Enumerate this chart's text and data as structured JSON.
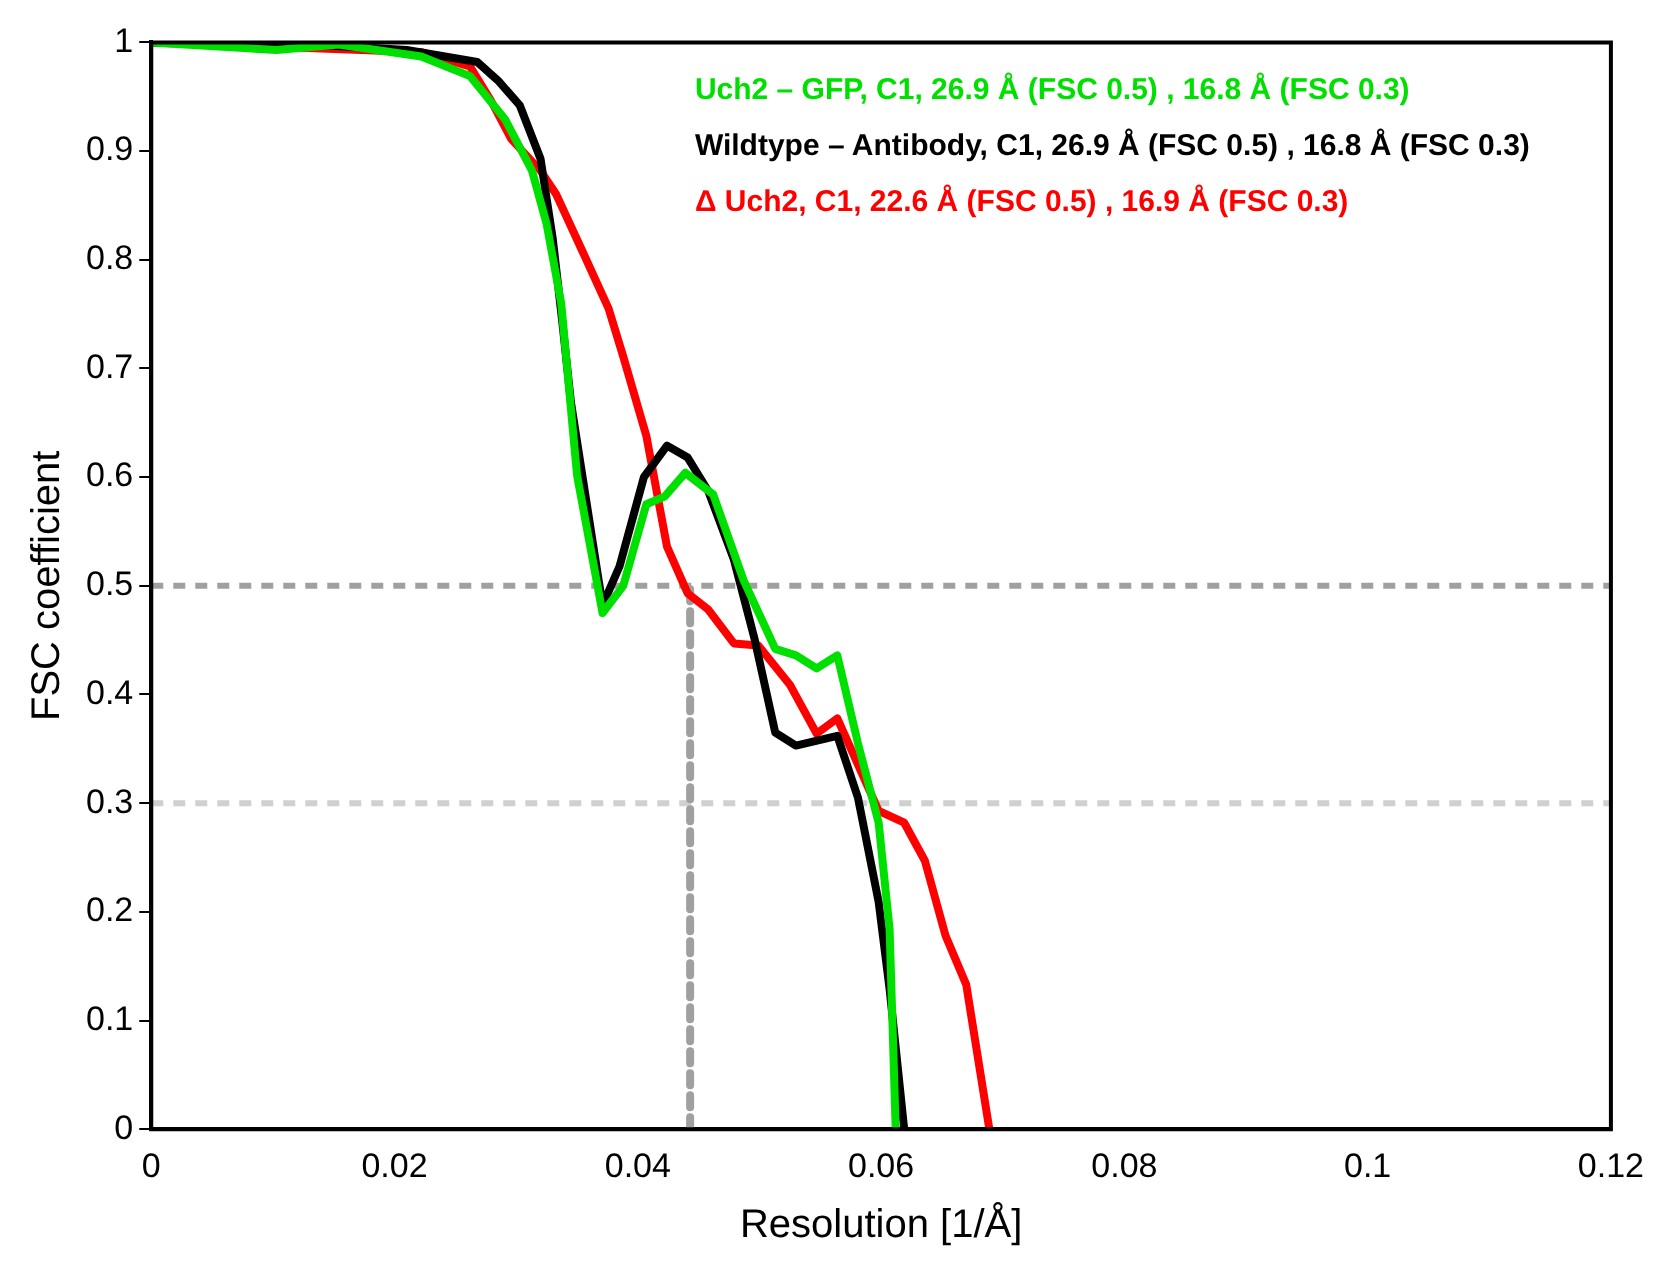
{
  "chart_data": {
    "type": "line",
    "xlabel": "Resolution [1/Å]",
    "ylabel": "FSC coefficient",
    "xlim": [
      0,
      0.12
    ],
    "xticks": [
      0,
      0.02,
      0.04,
      0.06,
      0.08,
      0.1,
      0.12
    ],
    "ylim": [
      0,
      1
    ],
    "yticks": [
      0,
      0.1,
      0.2,
      0.3,
      0.4,
      0.5,
      0.6,
      0.7,
      0.8,
      0.9,
      1
    ],
    "grid": false,
    "legend": "top right",
    "marker": "none",
    "line_style": "solid",
    "ref_lines": [
      {
        "axis": "y",
        "value": 0.5,
        "color": "#a0a0a0",
        "line_style": "dashed"
      },
      {
        "axis": "y",
        "value": 0.3,
        "color": "#d0d0d0",
        "line_style": "dashed"
      }
    ],
    "series": [
      {
        "name": "Uch2 – GFP, C1, 26.9 Å (FSC 0.5) , 16.8 Å (FSC 0.3)",
        "color": "#00e000",
        "x": [
          0,
          0.0103,
          0.0154,
          0.0222,
          0.0262,
          0.0291,
          0.0313,
          0.0325,
          0.0337,
          0.035,
          0.0371,
          0.0388,
          0.0407,
          0.0422,
          0.0439,
          0.0462,
          0.0487,
          0.0513,
          0.053,
          0.0547,
          0.0564,
          0.0581,
          0.0598,
          0.0607,
          0.0612
        ],
        "values": [
          1,
          0.993,
          0.998,
          0.987,
          0.969,
          0.929,
          0.882,
          0.833,
          0.76,
          0.602,
          0.475,
          0.5,
          0.575,
          0.582,
          0.604,
          0.584,
          0.505,
          0.442,
          0.436,
          0.424,
          0.436,
          0.355,
          0.282,
          0.184,
          0
        ]
      },
      {
        "name": "Wildtype – Antibody, C1, 26.9 Å (FSC 0.5) , 16.8 Å (FSC 0.3)",
        "color": "#000000",
        "x": [
          0,
          0.0103,
          0.021,
          0.0268,
          0.0285,
          0.0303,
          0.032,
          0.033,
          0.0338,
          0.0345,
          0.0371,
          0.0385,
          0.0405,
          0.0424,
          0.0441,
          0.0458,
          0.0479,
          0.0496,
          0.0513,
          0.053,
          0.0564,
          0.0581,
          0.0598,
          0.0607,
          0.0619
        ],
        "values": [
          1,
          1,
          0.993,
          0.982,
          0.965,
          0.942,
          0.893,
          0.82,
          0.742,
          0.669,
          0.482,
          0.518,
          0.6,
          0.629,
          0.618,
          0.587,
          0.524,
          0.451,
          0.365,
          0.353,
          0.362,
          0.305,
          0.209,
          0.129,
          0
        ]
      },
      {
        "name": "Δ Uch2, C1, 22.6 Å (FSC 0.5) , 16.9 Å (FSC 0.3)",
        "color": "#ff0000",
        "x": [
          0,
          0.0222,
          0.0262,
          0.0279,
          0.0296,
          0.032,
          0.0333,
          0.0354,
          0.0376,
          0.0388,
          0.0407,
          0.0424,
          0.0441,
          0.0458,
          0.0479,
          0.0499,
          0.0525,
          0.0547,
          0.0564,
          0.0598,
          0.0619,
          0.0636,
          0.0653,
          0.067,
          0.0689
        ],
        "values": [
          1,
          0.991,
          0.978,
          0.947,
          0.911,
          0.882,
          0.86,
          0.809,
          0.755,
          0.711,
          0.638,
          0.536,
          0.493,
          0.478,
          0.447,
          0.445,
          0.409,
          0.364,
          0.378,
          0.293,
          0.282,
          0.247,
          0.178,
          0.133,
          0
        ]
      },
      {
        "color": "#a0a0a0",
        "line_style": "dashed",
        "x": [
          0.0443,
          0.0443
        ],
        "values": [
          0,
          0.5
        ]
      }
    ]
  }
}
